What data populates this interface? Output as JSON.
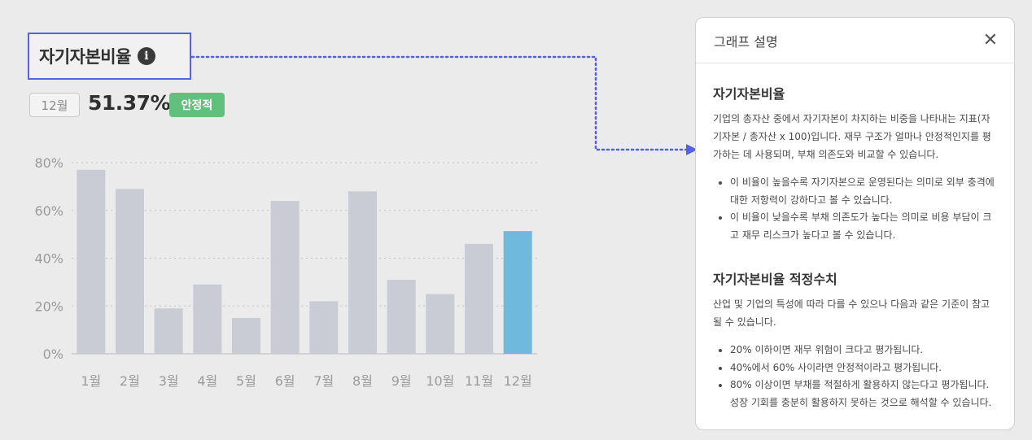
{
  "header": {
    "title": "자기자본비율",
    "info_icon": "info-icon"
  },
  "summary": {
    "period": "12월",
    "value": "51.37%",
    "status": "안정적",
    "status_color": "#62c07e"
  },
  "colors": {
    "bar_default": "#c9cbd5",
    "bar_highlight": "#6fb9dd",
    "connector": "#5561e4"
  },
  "chart_data": {
    "type": "bar",
    "categories": [
      "1월",
      "2월",
      "3월",
      "4월",
      "5월",
      "6월",
      "7월",
      "8월",
      "9월",
      "10월",
      "11월",
      "12월"
    ],
    "values": [
      77,
      69,
      19,
      29,
      15,
      64,
      22,
      68,
      31,
      25,
      46,
      51.37
    ],
    "highlight_index": 11,
    "ylim": [
      0,
      80
    ],
    "yticks": [
      "0%",
      "20%",
      "40%",
      "60%",
      "80%"
    ],
    "ytick_values": [
      0,
      20,
      40,
      60,
      80
    ],
    "grid": true,
    "title": "",
    "xlabel": "",
    "ylabel": ""
  },
  "panel": {
    "title": "그래프 설명",
    "close_icon": "close-icon",
    "section1": {
      "title": "자기자본비율",
      "desc": "기업의 총자산 중에서 자기자본이 차지하는 비중을 나타내는 지표(자기자본 / 총자산 x 100)입니다. 재무 구조가 얼마나 안정적인지를 평가하는 데 사용되며, 부채 의존도와 비교할 수 있습니다.",
      "bullets": [
        "이 비율이 높을수록 자기자본으로 운영된다는 의미로 외부 충격에 대한 저항력이 강하다고 볼 수 있습니다.",
        "이 비율이 낮을수록 부채 의존도가 높다는 의미로 비용 부담이 크고 재무 리스크가 높다고 볼 수 있습니다."
      ]
    },
    "section2": {
      "title": "자기자본비율 적정수치",
      "desc": "산업 및 기업의 특성에 따라 다를 수 있으나 다음과 같은 기준이 참고될 수 있습니다.",
      "bullets": [
        "20% 이하이면 재무 위험이 크다고 평가됩니다.",
        "40%에서 60% 사이라면 안정적이라고 평가됩니다.",
        "80% 이상이면 부채를 적절하게 활용하지 않는다고 평가됩니다. 성장 기회를 충분히 활용하지 못하는 것으로 해석할 수 있습니다."
      ]
    }
  }
}
